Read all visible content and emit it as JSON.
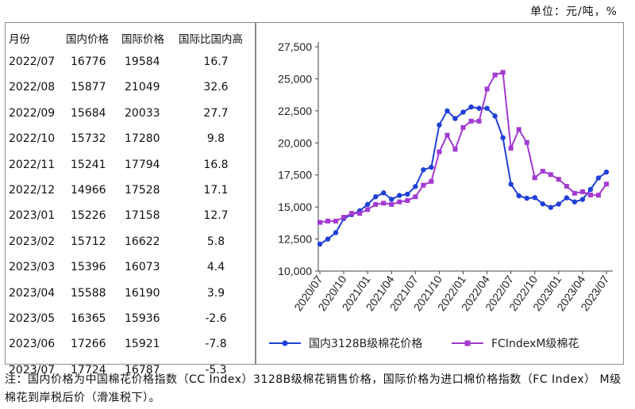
{
  "unit_label": "单位：元/吨，%",
  "table": {
    "headers": [
      "月份",
      "国内价格",
      "国际价格",
      "国际比国内高"
    ],
    "rows": [
      [
        "2022/07",
        "16776",
        "19584",
        "16.7"
      ],
      [
        "2022/08",
        "15877",
        "21049",
        "32.6"
      ],
      [
        "2022/09",
        "15684",
        "20033",
        "27.7"
      ],
      [
        "2022/10",
        "15732",
        "17280",
        "9.8"
      ],
      [
        "2022/11",
        "15241",
        "17794",
        "16.8"
      ],
      [
        "2022/12",
        "14966",
        "17528",
        "17.1"
      ],
      [
        "2023/01",
        "15226",
        "17158",
        "12.7"
      ],
      [
        "2023/02",
        "15712",
        "16622",
        "5.8"
      ],
      [
        "2023/03",
        "15396",
        "16073",
        "4.4"
      ],
      [
        "2023/04",
        "15588",
        "16190",
        "3.9"
      ],
      [
        "2023/05",
        "16365",
        "15936",
        "-2.6"
      ],
      [
        "2023/06",
        "17266",
        "15921",
        "-7.8"
      ],
      [
        "2023/07",
        "17724",
        "16787",
        "-5.3"
      ]
    ]
  },
  "chart_data": {
    "type": "line",
    "x": [
      "2020/07",
      "2020/08",
      "2020/09",
      "2020/10",
      "2020/11",
      "2020/12",
      "2021/01",
      "2021/02",
      "2021/03",
      "2021/04",
      "2021/05",
      "2021/06",
      "2021/07",
      "2021/08",
      "2021/09",
      "2021/10",
      "2021/11",
      "2021/12",
      "2022/01",
      "2022/02",
      "2022/03",
      "2022/04",
      "2022/05",
      "2022/06",
      "2022/07",
      "2022/08",
      "2022/09",
      "2022/10",
      "2022/11",
      "2022/12",
      "2023/01",
      "2023/02",
      "2023/03",
      "2023/04",
      "2023/05",
      "2023/06",
      "2023/07"
    ],
    "xticks": [
      "2020/07",
      "2020/10",
      "2021/01",
      "2021/04",
      "2021/07",
      "2021/10",
      "2022/01",
      "2022/04",
      "2022/07",
      "2022/10",
      "2023/01",
      "2023/04",
      "2023/07"
    ],
    "ylim": [
      10000,
      27500
    ],
    "yticks": [
      "10,000",
      "12,500",
      "15,000",
      "17,500",
      "20,000",
      "22,500",
      "25,000",
      "27,500"
    ],
    "grid": false,
    "legend_position": "bottom",
    "series": [
      {
        "name": "国内3128B级棉花价格",
        "color": "#1f3fd6",
        "marker": "circle",
        "values": [
          12100,
          12500,
          13000,
          14100,
          14400,
          14700,
          15200,
          15800,
          16100,
          15600,
          15900,
          16000,
          16600,
          17900,
          18100,
          21400,
          22500,
          21900,
          22400,
          22800,
          22700,
          22700,
          22100,
          20400,
          16776,
          15877,
          15684,
          15732,
          15241,
          14966,
          15226,
          15712,
          15396,
          15588,
          16365,
          17266,
          17724
        ]
      },
      {
        "name": "FCIndexM级棉花",
        "color": "#a33ad1",
        "marker": "square",
        "values": [
          13800,
          13900,
          13900,
          14200,
          14500,
          14500,
          14800,
          15200,
          15300,
          15200,
          15400,
          15500,
          15800,
          16700,
          17000,
          19300,
          20600,
          19500,
          21200,
          21700,
          21700,
          24200,
          25300,
          25500,
          19584,
          21049,
          20033,
          17280,
          17794,
          17528,
          17158,
          16622,
          16073,
          16190,
          15936,
          15921,
          16787
        ]
      }
    ]
  },
  "note": "注：国内价格为中国棉花价格指数（CC Index）3128B级棉花销售价格，国际价格为进口棉价格指数（FC Index） M级棉花到岸税后价（滑准税下）。"
}
